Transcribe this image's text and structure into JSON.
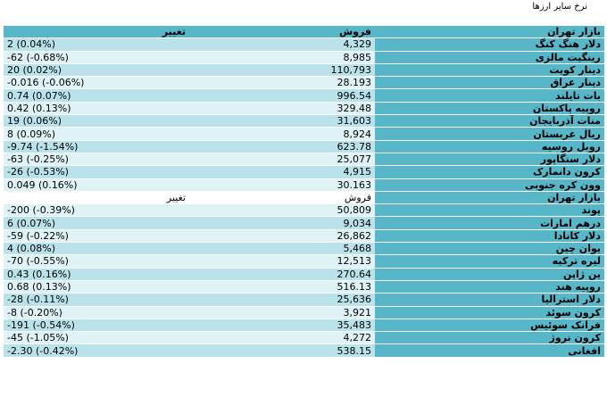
{
  "page_title": "نرخ سایر ارزها",
  "headers": {
    "change": "تغییر",
    "sell": "فروش",
    "name": "بازار تهران"
  },
  "section1": [
    {
      "name": "دلار هنگ کنگ",
      "sell": "4,329",
      "change": "2 (0.04%)"
    },
    {
      "name": "رینگیت مالزی",
      "sell": "8,985",
      "change": "-62 (-0.68%)"
    },
    {
      "name": "دینار کویت",
      "sell": "110,793",
      "change": "20 (0.02%)"
    },
    {
      "name": "دینار عراق",
      "sell": "28.193",
      "change": "-0.016 (-0.06%)"
    },
    {
      "name": "بات تایلند",
      "sell": "996.54",
      "change": "0.74 (0.07%)"
    },
    {
      "name": "روپیه پاکستان",
      "sell": "329.48",
      "change": "0.42 (0.13%)"
    },
    {
      "name": "منات آذربایجان",
      "sell": "31,603",
      "change": "19 (0.06%)"
    },
    {
      "name": "ریال عربستان",
      "sell": "8,924",
      "change": "8 (0.09%)"
    },
    {
      "name": "روبل روسیه",
      "sell": "623.78",
      "change": "-9.74 (-1.54%)"
    },
    {
      "name": "دلار سنگاپور",
      "sell": "25,077",
      "change": "-63 (-0.25%)"
    },
    {
      "name": "کرون دانمارک",
      "sell": "4,915",
      "change": "-26 (-0.53%)"
    },
    {
      "name": "وون کره جنوبی",
      "sell": "30.163",
      "change": "0.049 (0.16%)"
    }
  ],
  "subheaders": {
    "change": "تغییر",
    "sell": "فروش",
    "name": "بازار تهران"
  },
  "section2": [
    {
      "name": "پوند",
      "sell": "50,809",
      "change": "-200 (-0.39%)"
    },
    {
      "name": "درهم امارات",
      "sell": "9,034",
      "change": "6 (0.07%)"
    },
    {
      "name": "دلار کانادا",
      "sell": "26,862",
      "change": "-59 (-0.22%)"
    },
    {
      "name": "یوان چین",
      "sell": "5,468",
      "change": "4 (0.08%)"
    },
    {
      "name": "لیره ترکیه",
      "sell": "12,513",
      "change": "-70 (-0.55%)"
    },
    {
      "name": "ین ژاپن",
      "sell": "270.64",
      "change": "0.43 (0.16%)"
    },
    {
      "name": "روپیه هند",
      "sell": "516.13",
      "change": "0.68 (0.13%)"
    },
    {
      "name": "دلار استرالیا",
      "sell": "25,636",
      "change": "-28 (-0.11%)"
    },
    {
      "name": "کرون سوئد",
      "sell": "3,921",
      "change": "-8 (-0.20%)"
    },
    {
      "name": "فرانک سوئیس",
      "sell": "35,483",
      "change": "-191 (-0.54%)"
    },
    {
      "name": "کرون نروژ",
      "sell": "4,272",
      "change": "-45 (-1.05%)"
    },
    {
      "name": "افغانی",
      "sell": "538.15",
      "change": "-2.30 (-0.42%)"
    }
  ]
}
